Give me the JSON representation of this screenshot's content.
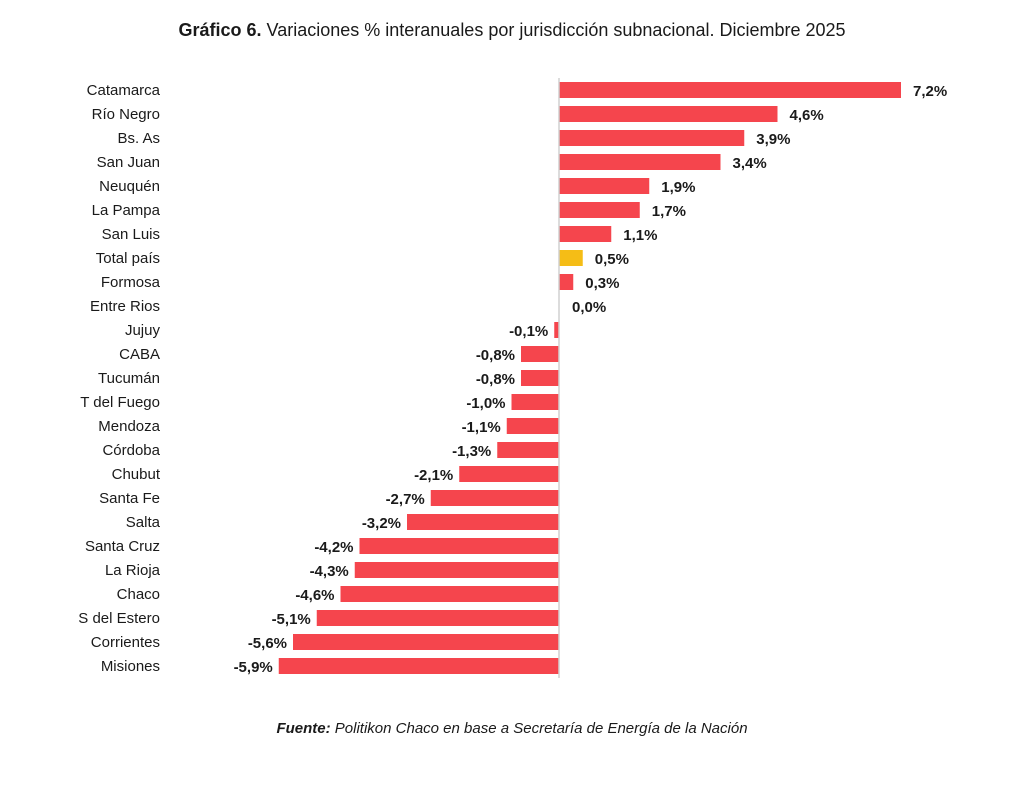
{
  "chart_data": {
    "type": "bar",
    "orientation": "horizontal",
    "title_bold": "Gráfico 6.",
    "title": "Variaciones % interanuales por jurisdicción subnacional. Diciembre 2025",
    "source_bold": "Fuente:",
    "source": "Politikon Chaco en base a Secretaría de Energía de la Nación",
    "xlabel": "",
    "ylabel": "",
    "categories": [
      "Catamarca",
      "Río Negro",
      "Bs. As",
      "San Juan",
      "Neuquén",
      "La Pampa",
      "San Luis",
      "Total país",
      "Formosa",
      "Entre Rios",
      "Jujuy",
      "CABA",
      "Tucumán",
      "T del Fuego",
      "Mendoza",
      "Córdoba",
      "Chubut",
      "Santa Fe",
      "Salta",
      "Santa Cruz",
      "La Rioja",
      "Chaco",
      "S del Estero",
      "Corrientes",
      "Misiones"
    ],
    "values": [
      7.2,
      4.6,
      3.9,
      3.4,
      1.9,
      1.7,
      1.1,
      0.5,
      0.3,
      0.0,
      -0.1,
      -0.8,
      -0.8,
      -1.0,
      -1.1,
      -1.3,
      -2.1,
      -2.7,
      -3.2,
      -4.2,
      -4.3,
      -4.6,
      -5.1,
      -5.6,
      -5.9
    ],
    "labels": [
      "7,2%",
      "4,6%",
      "3,9%",
      "3,4%",
      "1,9%",
      "1,7%",
      "1,1%",
      "0,5%",
      "0,3%",
      "0,0%",
      "-0,1%",
      "-0,8%",
      "-0,8%",
      "-1,0%",
      "-1,1%",
      "-1,3%",
      "-2,1%",
      "-2,7%",
      "-3,2%",
      "-4,2%",
      "-4,3%",
      "-4,6%",
      "-5,1%",
      "-5,6%",
      "-5,9%"
    ],
    "highlight": "Total país",
    "colors": {
      "bar": "#f5454d",
      "highlight": "#f5bd16",
      "axis": "#d0d0d0"
    },
    "grid": false,
    "legend": "none"
  }
}
